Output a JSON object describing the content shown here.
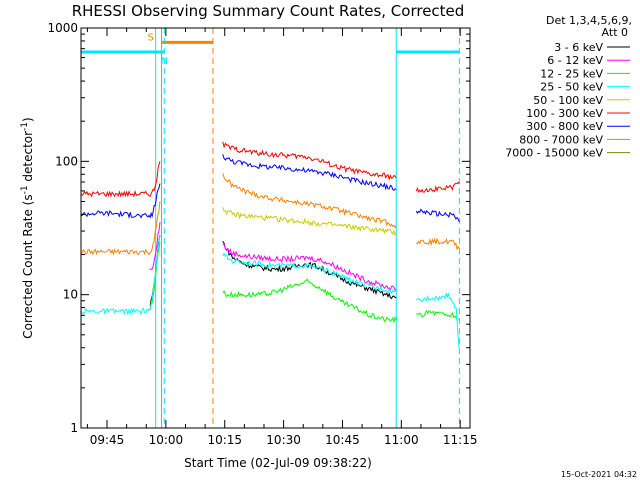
{
  "chart_data": {
    "type": "line",
    "title": "RHESSI Observing Summary Count Rates, Corrected",
    "xlabel": "Start Time (02-Jul-09 09:38:22)",
    "ylabel": "Corrected Count Rate (s⁻¹ detector⁻¹)",
    "ylabel_parts": [
      "Corrected Count Rate (s",
      "-1",
      " detector",
      "-1",
      ")"
    ],
    "yscale": "log",
    "ylim": [
      1,
      1000
    ],
    "xlim": [
      38.37,
      137.5
    ],
    "x_unit": "minutes after 09:00",
    "yticks": [
      {
        "value": 1,
        "label": "1"
      },
      {
        "value": 10,
        "label": "10"
      },
      {
        "value": 100,
        "label": "100"
      },
      {
        "value": 1000,
        "label": "1000"
      }
    ],
    "xticks": [
      {
        "value": 45,
        "label": "09:45"
      },
      {
        "value": 60,
        "label": "10:00"
      },
      {
        "value": 75,
        "label": "10:15"
      },
      {
        "value": 90,
        "label": "10:30"
      },
      {
        "value": 105,
        "label": "10:45"
      },
      {
        "value": 120,
        "label": "11:00"
      },
      {
        "value": 135,
        "label": "11:15"
      }
    ],
    "legend_header": [
      "Det 1,3,4,5,6,9,",
      "Att 0"
    ],
    "legend_position": "right",
    "series": [
      {
        "name": "3 - 6 keV",
        "color": "#000000",
        "segments": [
          {
            "x": [
              56.0,
              56.5,
              57.0,
              57.5,
              58.0,
              58.5
            ],
            "y": [
              8.5,
              9.5,
              12,
              16,
              22,
              28
            ]
          },
          {
            "x": [
              74.5,
              75.5,
              77,
              80,
              84,
              88,
              92,
              95,
              98,
              100,
              104,
              108,
              112,
              116,
              118.7
            ],
            "y": [
              25,
              22,
              19,
              17,
              16,
              15.5,
              16,
              17,
              16.5,
              15.5,
              13.5,
              12,
              11,
              10,
              9.5
            ]
          }
        ]
      },
      {
        "name": "6 - 12 keV",
        "color": "#ff00ff",
        "segments": [
          {
            "x": [
              55.8,
              56.5,
              57.0,
              57.5,
              58.0,
              58.5
            ],
            "y": [
              15,
              15,
              18,
              22,
              28,
              35
            ]
          },
          {
            "x": [
              74.5,
              75.5,
              77,
              80,
              84,
              88,
              92,
              96,
              100,
              104,
              108,
              112,
              116,
              118.7
            ],
            "y": [
              24,
              22,
              20.5,
              19.5,
              19,
              18.5,
              18.5,
              19,
              18,
              16,
              14,
              12.5,
              11.5,
              11
            ]
          }
        ]
      },
      {
        "name": "12 - 25 keV",
        "color": "#00ff00",
        "segments": [
          {
            "x": [
              56.0,
              56.5,
              57.0,
              57.5,
              58.0,
              58.5
            ],
            "y": [
              7.5,
              9,
              11,
              15,
              20,
              25
            ]
          },
          {
            "x": [
              74.5,
              75.5,
              77,
              80,
              84,
              88,
              92,
              96,
              100,
              104,
              108,
              112,
              116,
              119
            ],
            "y": [
              10.5,
              10,
              10,
              10,
              10,
              10.5,
              11.5,
              12.5,
              11,
              9,
              8,
              7,
              6.5,
              6.5
            ]
          },
          {
            "x": [
              123.8,
              125,
              127,
              130,
              133,
              134.6
            ],
            "y": [
              7,
              7,
              7.5,
              7.2,
              7,
              6.5
            ]
          }
        ]
      },
      {
        "name": "25 - 50 keV",
        "color": "#00ffff",
        "segments": [
          {
            "x": [
              38.37,
              42,
              46,
              50,
              54,
              56.0,
              56.5,
              57.0,
              57.5,
              58.0,
              58.5
            ],
            "y": [
              7.5,
              7.5,
              7.5,
              7.5,
              7.5,
              7.8,
              9,
              12,
              16,
              22,
              28
            ]
          },
          {
            "x": [
              74.5,
              75.5,
              77,
              80,
              84,
              88,
              92,
              96,
              100,
              104,
              108,
              112,
              116,
              118.7
            ],
            "y": [
              20,
              19,
              18,
              17.5,
              17,
              16.5,
              16.5,
              16.5,
              15.5,
              14,
              12.5,
              11.5,
              11,
              10.5
            ]
          },
          {
            "x": [
              123.8,
              125,
              127,
              130,
              132,
              134,
              134.7
            ],
            "y": [
              9,
              9,
              9.5,
              9.5,
              10,
              8,
              4
            ]
          }
        ]
      },
      {
        "name": "50 - 100 keV",
        "color": "#cccc00",
        "segments": [
          {
            "x": [
              74.5,
              75.5,
              77,
              80,
              84,
              88,
              92,
              96,
              100,
              104,
              108,
              112,
              116,
              118.7
            ],
            "y": [
              45,
              42,
              40,
              39,
              38,
              37,
              36,
              35,
              34,
              33,
              32,
              31,
              30,
              29
            ]
          }
        ]
      },
      {
        "name": "100 - 300 keV",
        "color": "#ff0000",
        "segments": [
          {
            "x": [
              38.37,
              42,
              46,
              50,
              54,
              56.0,
              56.5,
              57.0,
              57.5,
              58.0,
              58.5
            ],
            "y": [
              57,
              57,
              57,
              57,
              57,
              57,
              58,
              62,
              70,
              85,
              100
            ]
          },
          {
            "x": [
              74.5,
              75.5,
              77,
              80,
              84,
              88,
              92,
              96,
              100,
              104,
              108,
              112,
              116,
              118.7
            ],
            "y": [
              135,
              130,
              125,
              120,
              115,
              112,
              110,
              108,
              100,
              90,
              85,
              80,
              78,
              75
            ]
          },
          {
            "x": [
              123.8,
              125,
              127,
              130,
              133,
              134.8
            ],
            "y": [
              60,
              61,
              62,
              62,
              64,
              68
            ]
          }
        ]
      },
      {
        "name": "300 - 800 keV",
        "color": "#0000ff",
        "segments": [
          {
            "x": [
              38.37,
              42,
              46,
              50,
              54,
              56.0,
              56.5,
              57.0,
              57.5,
              58.0,
              58.5
            ],
            "y": [
              40,
              41,
              41,
              40,
              39,
              39,
              40,
              45,
              52,
              60,
              68
            ]
          },
          {
            "x": [
              74.5,
              75.5,
              77,
              80,
              84,
              88,
              92,
              96,
              100,
              104,
              108,
              112,
              116,
              118.7
            ],
            "y": [
              110,
              105,
              100,
              96,
              92,
              90,
              88,
              85,
              82,
              78,
              72,
              68,
              65,
              62
            ]
          },
          {
            "x": [
              123.8,
              125,
              127,
              130,
              133,
              134.8
            ],
            "y": [
              43,
              42,
              41,
              40,
              40,
              35
            ]
          }
        ]
      },
      {
        "name": "800 - 7000 keV",
        "color": "#ff8000",
        "segments": [
          {
            "x": [
              38.37,
              42,
              46,
              50,
              54,
              56.0,
              56.5,
              57.0,
              57.5,
              58.0,
              58.5
            ],
            "y": [
              21,
              21,
              21,
              21,
              21,
              21,
              22,
              25,
              32,
              40,
              50
            ]
          },
          {
            "x": [
              74.5,
              75.5,
              77,
              80,
              84,
              88,
              92,
              96,
              100,
              104,
              108,
              112,
              116,
              118.7
            ],
            "y": [
              80,
              72,
              66,
              60,
              55,
              52,
              50,
              48,
              46,
              43,
              40,
              37,
              35,
              33
            ]
          },
          {
            "x": [
              123.8,
              125,
              127,
              130,
              133,
              134.8
            ],
            "y": [
              25,
              25,
              25,
              25,
              25,
              22
            ]
          }
        ]
      },
      {
        "name": "7000 - 15000 keV",
        "color": "#808000",
        "segments": []
      }
    ],
    "annotations": [
      {
        "label": "S",
        "color": "#ff8000",
        "x_start": 58.9,
        "x_end": 72.0,
        "at_y": 780,
        "boundary_lines": [
          58.9,
          72.0
        ]
      },
      {
        "label": "N",
        "color": "#00e5ff",
        "x_start": 38.37,
        "x_end": 59.6,
        "at_y": 660,
        "boundary_lines": [
          57.4,
          59.6
        ]
      },
      {
        "label": "",
        "color": "#00e5ff",
        "x_start": 118.7,
        "x_end": 134.8,
        "at_y": 660,
        "boundary_lines": [
          118.7,
          134.8
        ]
      }
    ]
  },
  "footer": {
    "timestamp": "15-Oct-2021 04:32"
  }
}
